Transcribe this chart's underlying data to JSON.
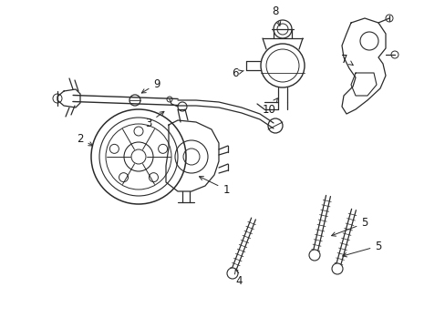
{
  "bg_color": "#ffffff",
  "line_color": "#2a2a2a",
  "label_color": "#1a1a1a",
  "figsize": [
    4.89,
    3.6
  ],
  "dpi": 100
}
